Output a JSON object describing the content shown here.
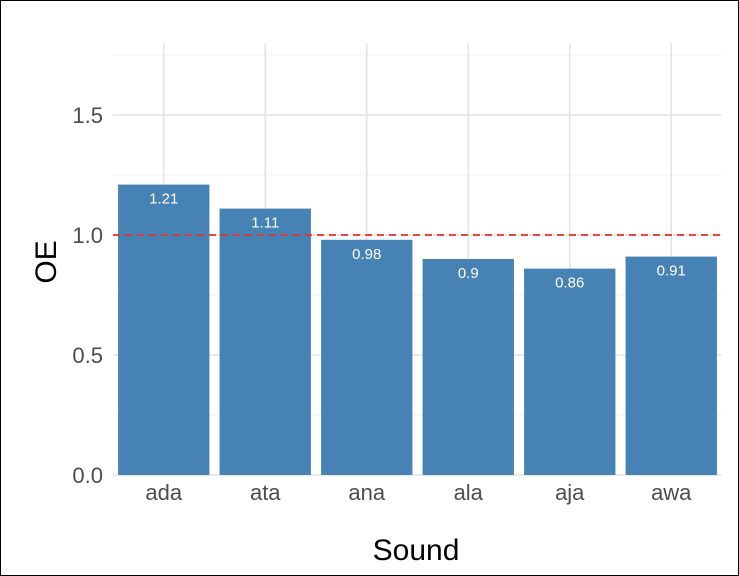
{
  "chart_data": {
    "type": "bar",
    "categories": [
      "ada",
      "ata",
      "ana",
      "ala",
      "aja",
      "awa"
    ],
    "values": [
      1.21,
      1.11,
      0.98,
      0.9,
      0.86,
      0.91
    ],
    "value_labels": [
      "1.21",
      "1.11",
      "0.98",
      "0.9",
      "0.86",
      "0.91"
    ],
    "xlabel": "Sound",
    "ylabel": "OE",
    "ylim": [
      0,
      1.8
    ],
    "yticks": [
      0.0,
      0.5,
      1.0,
      1.5
    ],
    "ytick_labels": [
      "0.0",
      "0.5",
      "1.0",
      "1.5"
    ],
    "reference_line": {
      "y": 1.0,
      "style": "dashed",
      "color": "#e8302a"
    },
    "bar_color": "#4682b4",
    "grid": true,
    "legend": "none"
  }
}
